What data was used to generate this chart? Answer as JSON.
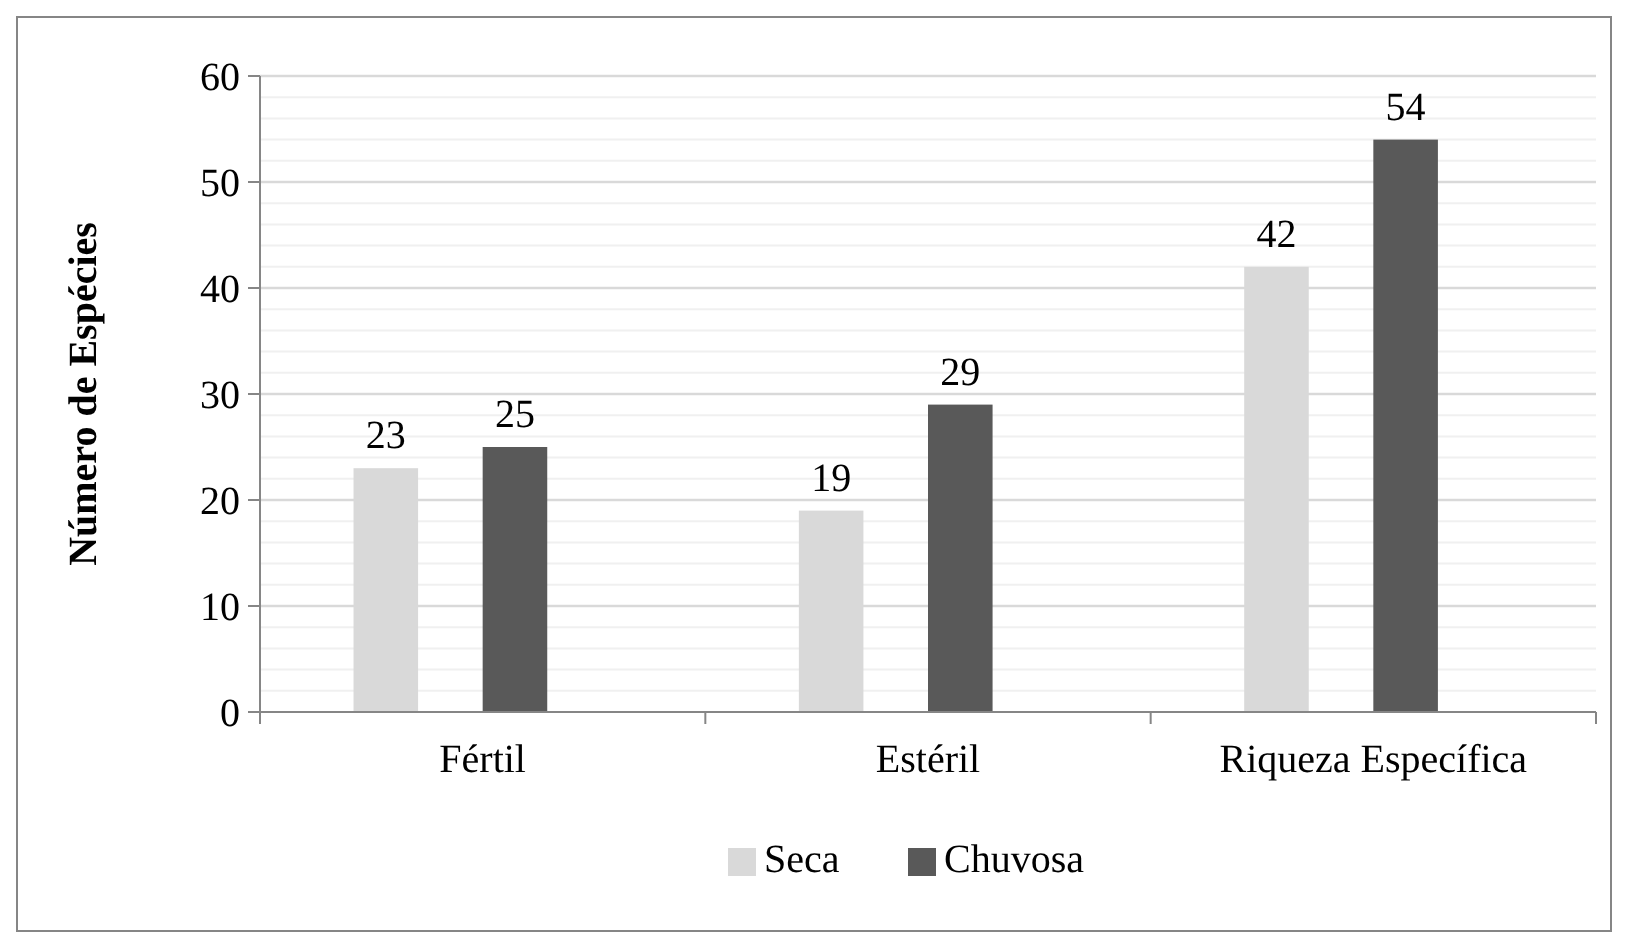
{
  "chart_data": {
    "type": "bar",
    "ylabel": "Número de Espécies",
    "categories": [
      "Fértil",
      "Estéril",
      "Riqueza Específica"
    ],
    "series": [
      {
        "name": "Seca",
        "color": "#d9d9d9",
        "values": [
          23,
          19,
          42
        ]
      },
      {
        "name": "Chuvosa",
        "color": "#595959",
        "values": [
          25,
          29,
          54
        ]
      }
    ],
    "ylim": [
      0,
      60
    ],
    "yticks": [
      0,
      {
        "value": 2,
        "label": null
      },
      {
        "value": 4,
        "label": null
      },
      {
        "value": 6,
        "label": null
      },
      {
        "value": 8,
        "label": null
      },
      10,
      {
        "value": 12,
        "label": null
      },
      {
        "value": 14,
        "label": null
      },
      {
        "value": 16,
        "label": null
      },
      {
        "value": 18,
        "label": null
      },
      20,
      {
        "value": 22,
        "label": null
      },
      {
        "value": 24,
        "label": null
      },
      {
        "value": 26,
        "label": null
      },
      {
        "value": 28,
        "label": null
      },
      30,
      {
        "value": 32,
        "label": null
      },
      {
        "value": 34,
        "label": null
      },
      {
        "value": 36,
        "label": null
      },
      {
        "value": 38,
        "label": null
      },
      40,
      {
        "value": 42,
        "label": null
      },
      {
        "value": 44,
        "label": null
      },
      {
        "value": 46,
        "label": null
      },
      {
        "value": 48,
        "label": null
      },
      50,
      {
        "value": 52,
        "label": null
      },
      {
        "value": 54,
        "label": null
      },
      {
        "value": 56,
        "label": null
      },
      {
        "value": 58,
        "label": null
      },
      60
    ],
    "grid": "y",
    "legend": "bottom",
    "data_labels": true
  }
}
